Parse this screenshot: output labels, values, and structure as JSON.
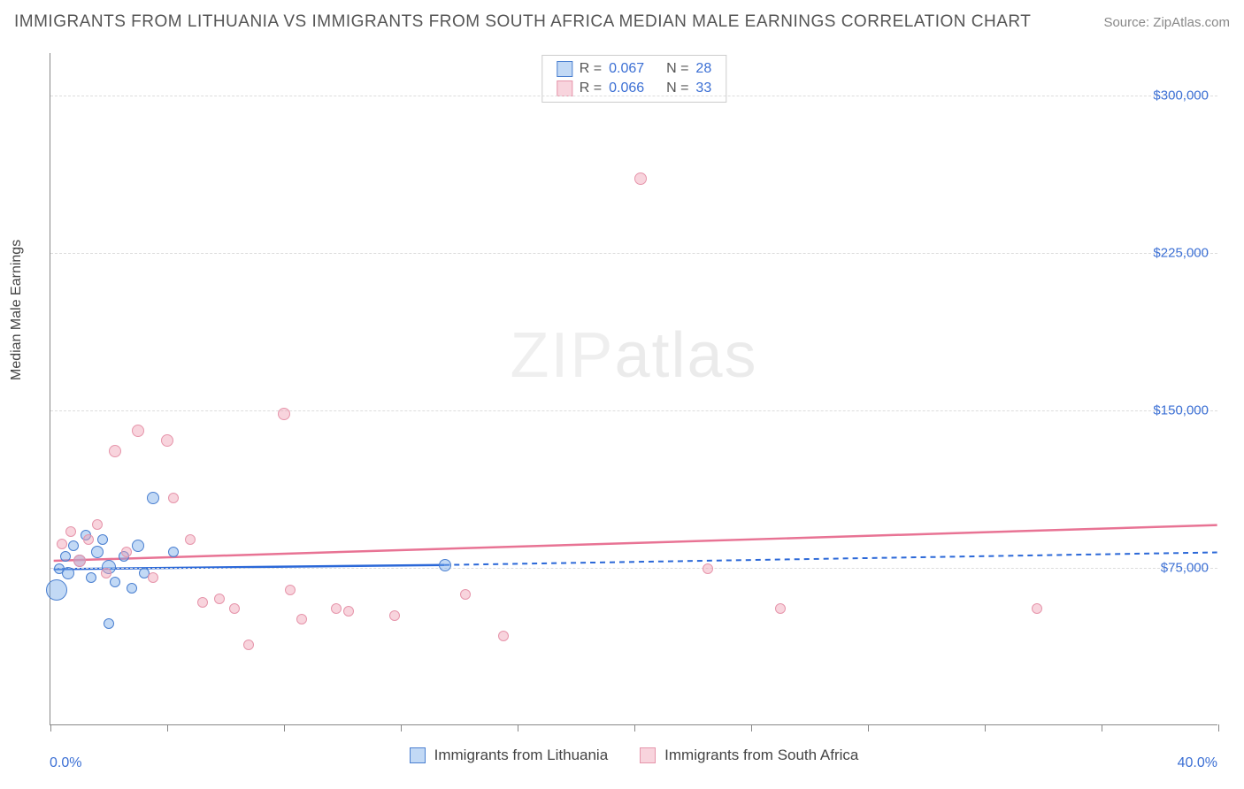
{
  "title": "IMMIGRANTS FROM LITHUANIA VS IMMIGRANTS FROM SOUTH AFRICA MEDIAN MALE EARNINGS CORRELATION CHART",
  "source": "Source: ZipAtlas.com",
  "ylabel": "Median Male Earnings",
  "watermark_zip": "ZIP",
  "watermark_atlas": "atlas",
  "xlim": [
    0.0,
    40.0
  ],
  "ylim": [
    0,
    320000
  ],
  "x_start_label": "0.0%",
  "x_end_label": "40.0%",
  "y_ticks": [
    75000,
    150000,
    225000,
    300000
  ],
  "y_tick_labels": [
    "$75,000",
    "$150,000",
    "$225,000",
    "$300,000"
  ],
  "x_tick_positions": [
    0,
    4,
    8,
    12,
    16,
    20,
    24,
    28,
    32,
    36,
    40
  ],
  "series": [
    {
      "name": "Immigrants from Lithuania",
      "color_fill": "rgba(119,170,232,0.45)",
      "color_stroke": "#4a7fd0",
      "trend_color": "#2b68d8",
      "R": "0.067",
      "N": "28",
      "trend": {
        "x0": 0.1,
        "y0": 74000,
        "x1_solid": 13.5,
        "y1_solid": 76000,
        "x1_dash": 40,
        "y1_dash": 82000
      },
      "points": [
        {
          "x": 0.3,
          "y": 74000,
          "r": 6
        },
        {
          "x": 0.5,
          "y": 80000,
          "r": 6
        },
        {
          "x": 0.6,
          "y": 72000,
          "r": 7
        },
        {
          "x": 0.8,
          "y": 85000,
          "r": 6
        },
        {
          "x": 1.0,
          "y": 78000,
          "r": 7
        },
        {
          "x": 1.2,
          "y": 90000,
          "r": 6
        },
        {
          "x": 1.4,
          "y": 70000,
          "r": 6
        },
        {
          "x": 1.6,
          "y": 82000,
          "r": 7
        },
        {
          "x": 1.8,
          "y": 88000,
          "r": 6
        },
        {
          "x": 2.0,
          "y": 75000,
          "r": 8
        },
        {
          "x": 2.2,
          "y": 68000,
          "r": 6
        },
        {
          "x": 2.5,
          "y": 80000,
          "r": 6
        },
        {
          "x": 2.8,
          "y": 65000,
          "r": 6
        },
        {
          "x": 3.0,
          "y": 85000,
          "r": 7
        },
        {
          "x": 3.2,
          "y": 72000,
          "r": 6
        },
        {
          "x": 3.5,
          "y": 108000,
          "r": 7
        },
        {
          "x": 4.2,
          "y": 82000,
          "r": 6
        },
        {
          "x": 2.0,
          "y": 48000,
          "r": 6
        },
        {
          "x": 0.2,
          "y": 64000,
          "r": 12
        },
        {
          "x": 13.5,
          "y": 76000,
          "r": 7
        }
      ]
    },
    {
      "name": "Immigrants from South Africa",
      "color_fill": "rgba(240,160,180,0.45)",
      "color_stroke": "#e695ab",
      "trend_color": "#e87394",
      "R": "0.066",
      "N": "33",
      "trend": {
        "x0": 0.1,
        "y0": 78000,
        "x1_solid": 40,
        "y1_solid": 95000,
        "x1_dash": 40,
        "y1_dash": 95000
      },
      "points": [
        {
          "x": 0.4,
          "y": 86000,
          "r": 6
        },
        {
          "x": 0.7,
          "y": 92000,
          "r": 6
        },
        {
          "x": 1.0,
          "y": 78000,
          "r": 7
        },
        {
          "x": 1.3,
          "y": 88000,
          "r": 6
        },
        {
          "x": 1.6,
          "y": 95000,
          "r": 6
        },
        {
          "x": 1.9,
          "y": 72000,
          "r": 6
        },
        {
          "x": 2.2,
          "y": 130000,
          "r": 7
        },
        {
          "x": 2.6,
          "y": 82000,
          "r": 6
        },
        {
          "x": 3.0,
          "y": 140000,
          "r": 7
        },
        {
          "x": 3.5,
          "y": 70000,
          "r": 6
        },
        {
          "x": 4.0,
          "y": 135000,
          "r": 7
        },
        {
          "x": 4.2,
          "y": 108000,
          "r": 6
        },
        {
          "x": 4.8,
          "y": 88000,
          "r": 6
        },
        {
          "x": 5.2,
          "y": 58000,
          "r": 6
        },
        {
          "x": 5.8,
          "y": 60000,
          "r": 6
        },
        {
          "x": 6.3,
          "y": 55000,
          "r": 6
        },
        {
          "x": 6.8,
          "y": 38000,
          "r": 6
        },
        {
          "x": 8.0,
          "y": 148000,
          "r": 7
        },
        {
          "x": 8.2,
          "y": 64000,
          "r": 6
        },
        {
          "x": 8.6,
          "y": 50000,
          "r": 6
        },
        {
          "x": 9.8,
          "y": 55000,
          "r": 6
        },
        {
          "x": 10.2,
          "y": 54000,
          "r": 6
        },
        {
          "x": 11.8,
          "y": 52000,
          "r": 6
        },
        {
          "x": 14.2,
          "y": 62000,
          "r": 6
        },
        {
          "x": 15.5,
          "y": 42000,
          "r": 6
        },
        {
          "x": 20.2,
          "y": 260000,
          "r": 7
        },
        {
          "x": 22.5,
          "y": 74000,
          "r": 6
        },
        {
          "x": 25.0,
          "y": 55000,
          "r": 6
        },
        {
          "x": 33.8,
          "y": 55000,
          "r": 6
        }
      ]
    }
  ],
  "legend_labels": {
    "R": "R =",
    "N": "N ="
  }
}
